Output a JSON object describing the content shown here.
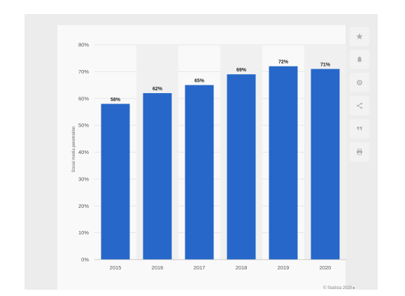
{
  "chart_data": {
    "type": "bar",
    "categories": [
      "2015",
      "2016",
      "2017",
      "2018",
      "2019",
      "2020"
    ],
    "values": [
      58,
      62,
      65,
      69,
      72,
      71
    ],
    "data_labels": [
      "58%",
      "62%",
      "65%",
      "69%",
      "72%",
      "71%"
    ],
    "title": "",
    "xlabel": "",
    "ylabel": "Social media penetration",
    "ylim": [
      0,
      80
    ],
    "yticks": [
      "0%",
      "10%",
      "20%",
      "30%",
      "40%",
      "50%",
      "60%",
      "70%",
      "80%"
    ],
    "grid": true,
    "bar_color": "#2667c9"
  },
  "toolbar": {
    "icons": [
      "star-icon",
      "bell-icon",
      "gear-icon",
      "share-icon",
      "quote-icon",
      "print-icon"
    ]
  },
  "source_text": "© Statista 2020 ▸"
}
